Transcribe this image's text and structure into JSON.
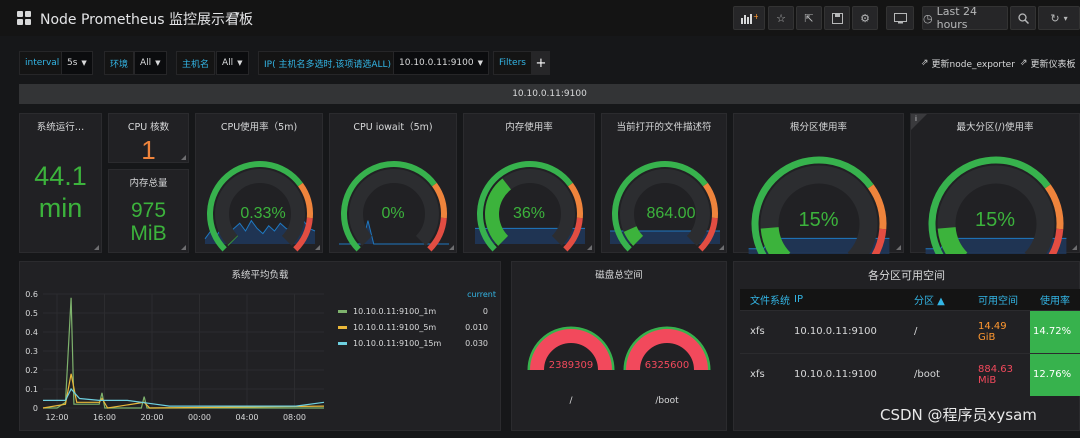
{
  "topbar": {
    "title": "Node Prometheus 监控展示看板",
    "time_range": "Last 24 hours"
  },
  "variables": {
    "interval_label": "interval",
    "interval_value": "5s",
    "env_label": "环境",
    "env_value": "All",
    "host_label": "主机名",
    "host_value": "All",
    "ip_label": "IP( 主机名多选时,该项请选ALL)",
    "ip_value": "10.10.0.11:9100",
    "filters_label": "Filters",
    "plus_label": "+",
    "link_exporter": "更新node_exporter",
    "link_dashboard": "更新仪表板"
  },
  "row_title": "10.10.0.11:9100",
  "panels": {
    "uptime": {
      "title": "系统运行…",
      "value": "44.1",
      "unit": "min"
    },
    "cpu_cores": {
      "title": "CPU 核数",
      "value": "1"
    },
    "mem_total": {
      "title": "内存总量",
      "value": "975",
      "unit": "MiB"
    },
    "cpu_usage": {
      "title": "CPU使用率（5m)",
      "value": "0.33%",
      "fraction": 0.0033
    },
    "cpu_iowait": {
      "title": "CPU iowait（5m)",
      "value": "0%",
      "fraction": 0
    },
    "mem_usage": {
      "title": "内存使用率",
      "value": "36%",
      "fraction": 0.36
    },
    "fd_open": {
      "title": "当前打开的文件描述符",
      "value": "864.00",
      "fraction": 0.08
    },
    "root_usage": {
      "title": "根分区使用率",
      "value": "15%",
      "fraction": 0.15
    },
    "max_usage": {
      "title": "最大分区(/)使用率",
      "value": "15%",
      "fraction": 0.15,
      "info": "i"
    },
    "load": {
      "title": "系统平均负载"
    },
    "disk": {
      "title": "磁盘总空间",
      "left_value": "2389309",
      "left_label": "/",
      "right_value": "6325600",
      "right_label": "/boot"
    },
    "partitions": {
      "title": "各分区可用空间"
    }
  },
  "load_chart": {
    "chart_data": {
      "type": "line",
      "title": "系统平均负载",
      "x_ticks": [
        "12:00",
        "16:00",
        "20:00",
        "00:00",
        "04:00",
        "08:00"
      ],
      "y_ticks": [
        "0",
        "0.1",
        "0.2",
        "0.3",
        "0.4",
        "0.5",
        "0.6"
      ],
      "ylim": [
        0,
        0.6
      ],
      "series": [
        {
          "name": "10.10.0.11:9100_1m",
          "color": "#7eb26d",
          "current": "0",
          "points": [
            [
              0,
              0
            ],
            [
              0.05,
              0
            ],
            [
              0.08,
              0.03
            ],
            [
              0.1,
              0.58
            ],
            [
              0.11,
              0.02
            ],
            [
              0.2,
              0.02
            ],
            [
              0.21,
              0.08
            ],
            [
              0.22,
              0
            ],
            [
              0.35,
              0
            ],
            [
              0.36,
              0.06
            ],
            [
              0.37,
              0
            ],
            [
              1,
              0
            ]
          ]
        },
        {
          "name": "10.10.0.11:9100_5m",
          "color": "#eab839",
          "current": "0.010",
          "points": [
            [
              0,
              0
            ],
            [
              0.08,
              0.02
            ],
            [
              0.1,
              0.18
            ],
            [
              0.12,
              0.03
            ],
            [
              0.2,
              0.03
            ],
            [
              0.21,
              0.05
            ],
            [
              0.23,
              0
            ],
            [
              0.36,
              0.03
            ],
            [
              0.38,
              0
            ],
            [
              1,
              0.01
            ]
          ]
        },
        {
          "name": "10.10.0.11:9100_15m",
          "color": "#6ed0e0",
          "current": "0.030",
          "points": [
            [
              0,
              0.04
            ],
            [
              0.08,
              0.04
            ],
            [
              0.1,
              0.1
            ],
            [
              0.13,
              0.05
            ],
            [
              0.2,
              0.04
            ],
            [
              0.3,
              0.04
            ],
            [
              0.4,
              0.02
            ],
            [
              0.45,
              0.01
            ],
            [
              0.9,
              0.01
            ],
            [
              1,
              0.03
            ]
          ]
        }
      ]
    },
    "legend_header": "current"
  },
  "table": {
    "headers": [
      "文件系统",
      "IP",
      "分区 ▲",
      "可用空间",
      "使用率"
    ],
    "rows": [
      {
        "fs": "xfs",
        "ip": "10.10.0.11:9100",
        "part": "/",
        "free_a": "14.49",
        "free_b": "GiB",
        "usage": "14.72%"
      },
      {
        "fs": "xfs",
        "ip": "10.10.0.11:9100",
        "part": "/boot",
        "free_a": "884.63",
        "free_b": "MiB",
        "usage": "12.76%"
      }
    ]
  },
  "watermark": "CSDN @程序员xysam",
  "colors": {
    "green": "#3cb33c",
    "orange": "#ef843c",
    "red": "#e24d42",
    "blue": "#33b5e5"
  }
}
